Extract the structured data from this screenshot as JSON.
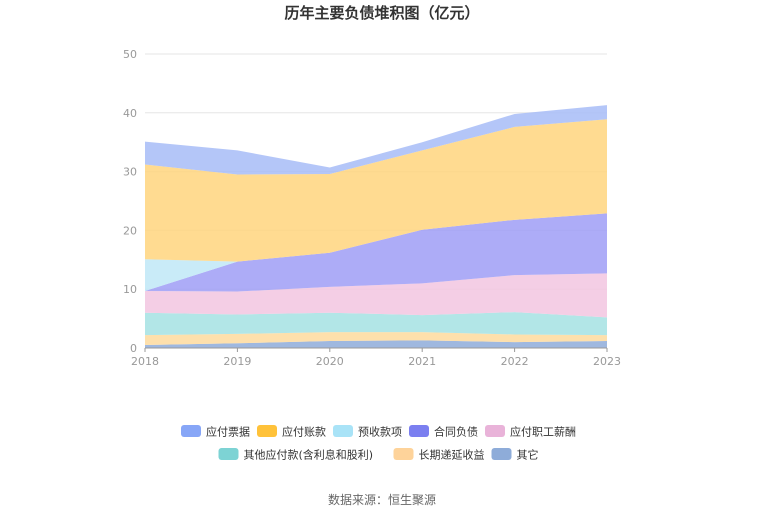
{
  "chart_data": {
    "type": "area",
    "stacked": true,
    "title": "历年主要负债堆积图（亿元）",
    "xlabel": "",
    "ylabel": "",
    "x": [
      "2018",
      "2019",
      "2020",
      "2021",
      "2022",
      "2023"
    ],
    "ylim": [
      0,
      50
    ],
    "yticks": [
      0,
      10,
      20,
      30,
      40,
      50
    ],
    "grid": true,
    "legend_position": "bottom",
    "series": [
      {
        "name": "其它",
        "color": "#8eacd9",
        "values": [
          0.5,
          0.8,
          1.2,
          1.3,
          1.0,
          1.2
        ]
      },
      {
        "name": "长期递延收益",
        "color": "#fedb9e",
        "values": [
          1.7,
          1.6,
          1.5,
          1.4,
          1.3,
          1.0
        ]
      },
      {
        "name": "其他应付款(含利息和股利)",
        "color": "#a5e2e3",
        "values": [
          3.8,
          3.3,
          3.3,
          2.9,
          3.8,
          3.0
        ]
      },
      {
        "name": "应付职工薪酬",
        "color": "#f2c6e0",
        "values": [
          3.7,
          3.9,
          4.4,
          5.4,
          6.3,
          7.5
        ]
      },
      {
        "name": "合同负债",
        "color": "#9f9ef6",
        "values": [
          0,
          5.1,
          5.8,
          9.1,
          9.4,
          10.2
        ]
      },
      {
        "name": "预收款项",
        "color": "#bfe8f7",
        "values": [
          5.4,
          0,
          0,
          0,
          0,
          0
        ]
      },
      {
        "name": "应付账款",
        "color": "#ffd57e",
        "values": [
          16.1,
          14.8,
          13.4,
          13.5,
          15.8,
          16.0
        ]
      },
      {
        "name": "应付票据",
        "color": "#a7bcf7",
        "values": [
          3.9,
          4.1,
          1.1,
          1.4,
          2.2,
          2.4
        ]
      }
    ],
    "legend_order": [
      "应付票据",
      "应付账款",
      "预收款项",
      "合同负债",
      "应付职工薪酬",
      "其他应付款(含利息和股利)",
      "长期递延收益",
      "其它"
    ],
    "legend_colors": [
      "#87a6f7",
      "#ffc23a",
      "#a9e3f7",
      "#7b7ff0",
      "#e9b3d9",
      "#7dd3d4",
      "#fed39a",
      "#8eacd9"
    ]
  },
  "source": "数据来源：恒生聚源"
}
